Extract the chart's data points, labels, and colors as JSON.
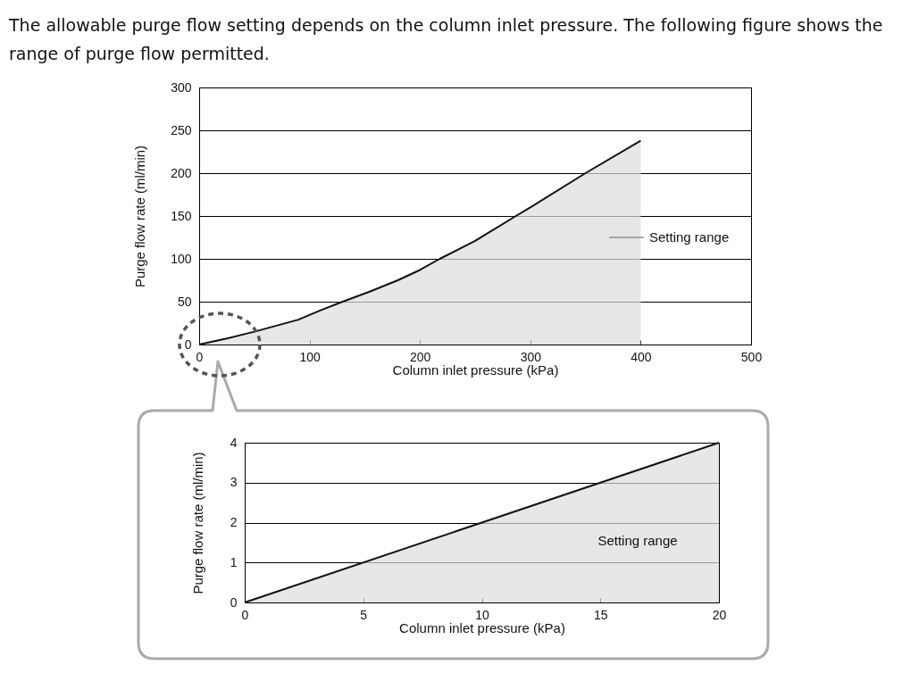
{
  "chart_data": [
    {
      "type": "area",
      "title": "The allowable purge flow setting depends on the column inlet pressure. The following figure shows the range of purge flow permitted.",
      "xlabel": "Column inlet pressure (kPa)",
      "ylabel": "Purge flow rate (ml/min)",
      "x": [
        0,
        25,
        50,
        70,
        90,
        110,
        130,
        155,
        180,
        200,
        218,
        250,
        287,
        300,
        350,
        400
      ],
      "values": [
        0,
        7,
        15,
        22,
        29,
        40,
        50,
        62,
        75,
        87,
        100,
        121,
        150,
        160,
        200,
        238
      ],
      "color": "#dcdddd",
      "xlim": [
        0,
        500
      ],
      "xticks": [
        0,
        100,
        200,
        300,
        400,
        500
      ],
      "ylim": [
        0,
        300
      ],
      "yticks": [
        0,
        50,
        100,
        150,
        200,
        250,
        300
      ],
      "grid": "y",
      "annotations": [
        "Setting range"
      ]
    },
    {
      "type": "area",
      "xlabel": "Column inlet pressure (kPa)",
      "ylabel": "Purge flow rate (ml/min)",
      "x": [
        0,
        20
      ],
      "values": [
        0,
        4
      ],
      "color": "#dcdddd",
      "xlim": [
        0,
        20
      ],
      "xticks": [
        0,
        5,
        10,
        15,
        20
      ],
      "ylim": [
        0,
        4
      ],
      "yticks": [
        0,
        1,
        2,
        3,
        4
      ],
      "grid": "y",
      "annotations": [
        "Setting range"
      ]
    }
  ]
}
